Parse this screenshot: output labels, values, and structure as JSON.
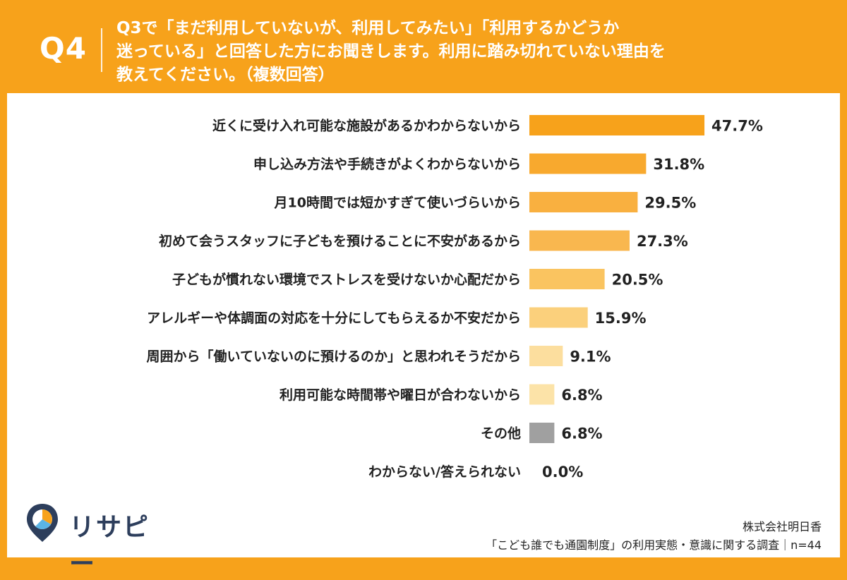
{
  "header": {
    "question_id": "Q4",
    "question_lines": [
      "Q3で「まだ利用していないが、利用してみたい」「利用するかどうか",
      "迷っている」と回答した方にお聞きします。利用に踏み切れていない理由を",
      "教えてください。（複数回答）"
    ]
  },
  "brand": {
    "logo_text": "リサピー"
  },
  "source": {
    "company": "株式会社明日香",
    "survey": "「こども誰でも通園制度」の利用実態・意識に関する調査｜n=44"
  },
  "colors": {
    "background": "#F7A21B",
    "bars": [
      "#F7A21B",
      "#F8A92E",
      "#F9B040",
      "#F9B74F",
      "#FAC460",
      "#FBD07C",
      "#FCDE9E",
      "#FCE3A8",
      "#A0A0A0",
      "#CCCCCC"
    ]
  },
  "chart_data": {
    "type": "bar",
    "orientation": "horizontal",
    "categories": [
      "近くに受け入れ可能な施設があるかわからないから",
      "申し込み方法や手続きがよくわからないから",
      "月10時間では短かすぎて使いづらいから",
      "初めて会うスタッフに子どもを預けることに不安があるから",
      "子どもが慣れない環境でストレスを受けないか心配だから",
      "アレルギーや体調面の対応を十分にしてもらえるか不安だから",
      "周囲から「働いていないのに預けるのか」と思われそうだから",
      "利用可能な時間帯や曜日が合わないから",
      "その他",
      "わからない/答えられない"
    ],
    "values": [
      47.7,
      31.8,
      29.5,
      27.3,
      20.5,
      15.9,
      9.1,
      6.8,
      6.8,
      0.0
    ],
    "value_labels": [
      "47.7%",
      "31.8%",
      "29.5%",
      "27.3%",
      "20.5%",
      "15.9%",
      "9.1%",
      "6.8%",
      "6.8%",
      "0.0%"
    ],
    "unit": "%",
    "xlim": [
      0,
      100
    ],
    "grid": false,
    "legend": "none"
  }
}
